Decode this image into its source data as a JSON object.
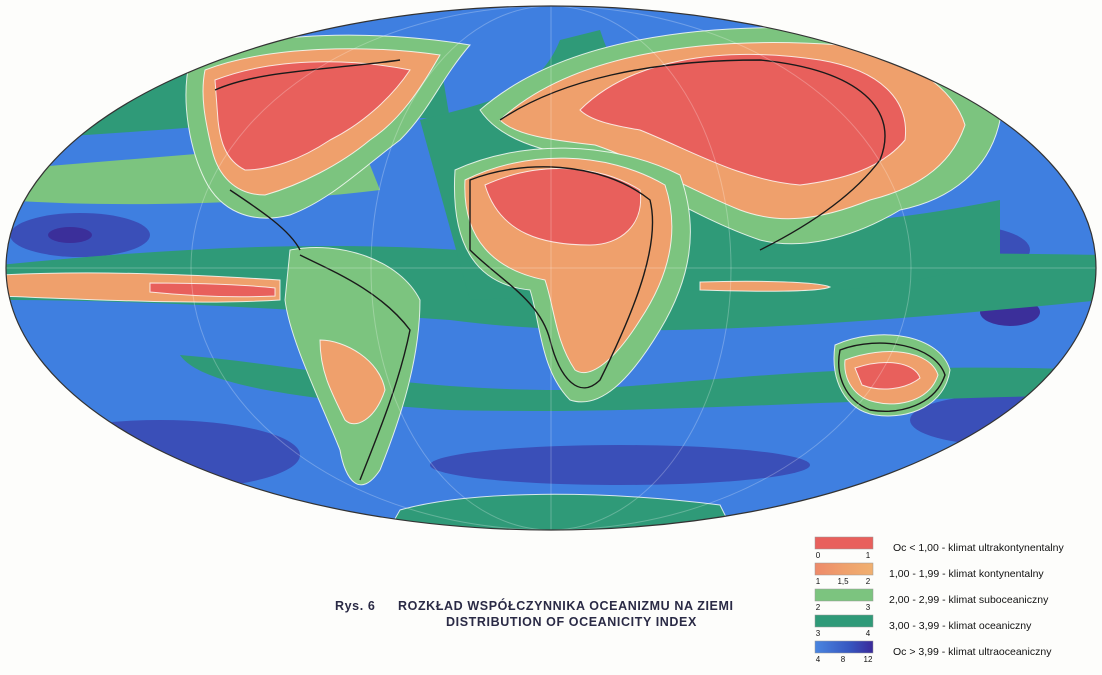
{
  "caption": {
    "figure": "Rys. 6",
    "title_pl": "ROZKŁAD WSPÓŁCZYNNIKA OCEANIZMU NA ZIEMI",
    "title_en": "DISTRIBUTION OF OCEANICITY INDEX"
  },
  "legend": [
    {
      "ticks": [
        "0",
        "1"
      ],
      "label": "Oc < 1,00 - klimat ultrakontynentalny"
    },
    {
      "ticks": [
        "1",
        "1,5",
        "2"
      ],
      "label": "1,00 - 1,99 - klimat kontynentalny"
    },
    {
      "ticks": [
        "2",
        "3"
      ],
      "label": "2,00 - 2,99 - klimat suboceaniczny"
    },
    {
      "ticks": [
        "3",
        "4"
      ],
      "label": "3,00 - 3,99 - klimat oceaniczny"
    },
    {
      "ticks": [
        "4",
        "8",
        "12"
      ],
      "label": "Oc > 3,99 - klimat ultraoceaniczny"
    }
  ]
}
